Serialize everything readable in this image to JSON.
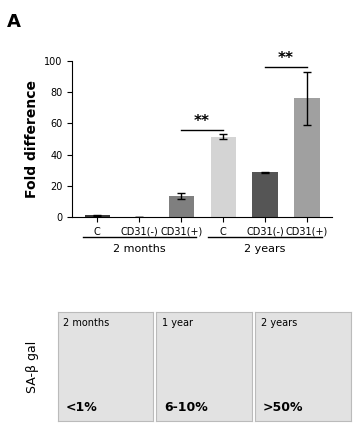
{
  "panel_label": "A",
  "chart_data": {
    "type": "bar",
    "y_label": "Fold difference",
    "categories": [
      "C",
      "CD31(-)",
      "CD31(+)",
      "C",
      "CD31(-)",
      "CD31(+)"
    ],
    "values": [
      1,
      0.3,
      13.5,
      51.5,
      28.5,
      76
    ],
    "errors": [
      0.5,
      0,
      2,
      1.5,
      0.5,
      17
    ],
    "colors": [
      "#3a3a3a",
      "#3a3a3a",
      "#7f7f7f",
      "#d4d4d4",
      "#555555",
      "#a0a0a0"
    ],
    "ylim": [
      0,
      100
    ],
    "yticks": [
      0,
      20,
      40,
      60,
      80,
      100
    ],
    "groups": [
      {
        "label": "2 months",
        "members": [
          0,
          1,
          2
        ]
      },
      {
        "label": "2 years",
        "members": [
          3,
          4,
          5
        ]
      }
    ],
    "significance": [
      {
        "pair": [
          2,
          3
        ],
        "label": "**"
      },
      {
        "pair": [
          4,
          5
        ],
        "label": "**"
      }
    ]
  },
  "images": {
    "label": "SA-β gal",
    "panels": [
      {
        "title": "2 months",
        "value": "<1%"
      },
      {
        "title": "1 year",
        "value": "6-10%"
      },
      {
        "title": "2 years",
        "value": ">50%"
      }
    ]
  }
}
